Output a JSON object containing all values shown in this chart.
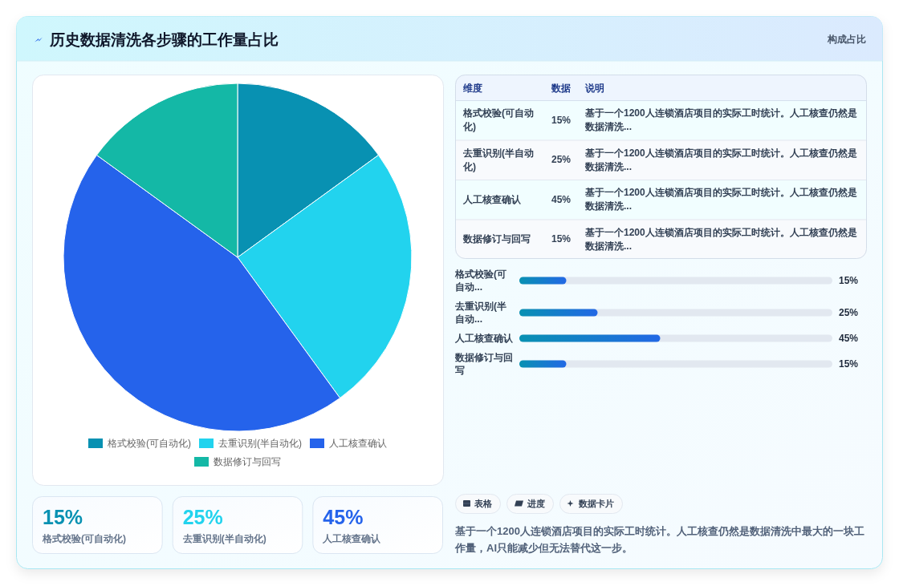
{
  "chart_data": [
    {
      "type": "pie",
      "title": "历史数据清洗各步骤的工作量占比",
      "categories": [
        "格式校验(可自动化)",
        "去重识别(半自动化)",
        "人工核查确认",
        "数据修订与回写"
      ],
      "values": [
        15,
        25,
        45,
        15
      ],
      "colors": [
        "#0891b2",
        "#22d3ee",
        "#2563eb",
        "#14b8a6"
      ],
      "legend": "bottom"
    },
    {
      "type": "other",
      "subtitle": "构成占比",
      "categories": [
        "维度",
        "数据",
        "说明"
      ],
      "y_categories": [
        "格式校验(可自动化)",
        "去重识别(半自动化)",
        "人工核查确认",
        "数据修订与回写"
      ],
      "value_labels": [
        "15%",
        "25%",
        "45%",
        "15%"
      ],
      "annotations": [
        "基于一个1200人连锁酒店项目的实际工时统计。人工核查仍然是数据清洗...",
        "基于一个1200人连锁酒店项目的实际工时统计。人工核查仍然是数据清洗...",
        "基于一个1200人连锁酒店项目的实际工时统计。人工核查仍然是数据清洗...",
        "基于一个1200人连锁酒店项目的实际工时统计。人工核查仍然是数据清洗..."
      ]
    },
    {
      "type": "bar",
      "orientation": "horizontal",
      "categories": [
        "格式校验(可自动...",
        "去重识别(半自动...",
        "人工核查确认",
        "数据修订与回写"
      ],
      "values": [
        15,
        25,
        45,
        15
      ],
      "value_labels": [
        "15%",
        "25%",
        "45%",
        "15%"
      ],
      "color": "#0891b2",
      "xlim": [
        0,
        100
      ],
      "tick_labels": "y"
    },
    {
      "type": "other",
      "categories": [
        "格式校验(可自动化)",
        "去重识别(半自动化)",
        "人工核查确认"
      ],
      "value_labels": [
        "15%",
        "25%",
        "45%"
      ]
    },
    {
      "type": "other",
      "categories": [
        "表格",
        "进度",
        "数据卡片"
      ],
      "annotations": [
        "基于一个1200人连锁酒店项目的实际工时统计。人工核查仍然是数据清洗中最大的一块工作量，AI只能减少但无法替代这一步。"
      ]
    }
  ]
}
